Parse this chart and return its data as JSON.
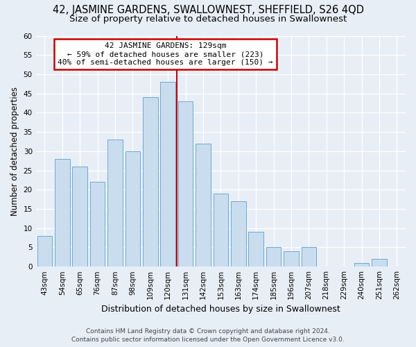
{
  "title": "42, JASMINE GARDENS, SWALLOWNEST, SHEFFIELD, S26 4QD",
  "subtitle": "Size of property relative to detached houses in Swallownest",
  "xlabel": "Distribution of detached houses by size in Swallownest",
  "ylabel": "Number of detached properties",
  "footer_line1": "Contains HM Land Registry data © Crown copyright and database right 2024.",
  "footer_line2": "Contains public sector information licensed under the Open Government Licence v3.0.",
  "categories": [
    "43sqm",
    "54sqm",
    "65sqm",
    "76sqm",
    "87sqm",
    "98sqm",
    "109sqm",
    "120sqm",
    "131sqm",
    "142sqm",
    "153sqm",
    "163sqm",
    "174sqm",
    "185sqm",
    "196sqm",
    "207sqm",
    "218sqm",
    "229sqm",
    "240sqm",
    "251sqm",
    "262sqm"
  ],
  "values": [
    8,
    28,
    26,
    22,
    33,
    30,
    44,
    48,
    43,
    32,
    19,
    17,
    9,
    5,
    4,
    5,
    0,
    0,
    1,
    2,
    0
  ],
  "bar_color": "#c9ddef",
  "bar_edge_color": "#6aaad4",
  "annotation_text_line1": "42 JASMINE GARDENS: 129sqm",
  "annotation_text_line2": "← 59% of detached houses are smaller (223)",
  "annotation_text_line3": "40% of semi-detached houses are larger (150) →",
  "annotation_box_facecolor": "#ffffff",
  "annotation_box_edgecolor": "#cc0000",
  "vline_color": "#cc0000",
  "vline_x_index": 8,
  "ylim": [
    0,
    60
  ],
  "yticks": [
    0,
    5,
    10,
    15,
    20,
    25,
    30,
    35,
    40,
    45,
    50,
    55,
    60
  ],
  "bg_color": "#e8eef6",
  "plot_bg_color": "#e8eef6",
  "grid_color": "#ffffff",
  "title_fontsize": 10.5,
  "subtitle_fontsize": 9.5,
  "ylabel_fontsize": 8.5,
  "xlabel_fontsize": 9,
  "tick_fontsize": 7.5,
  "footer_fontsize": 6.5,
  "annotation_fontsize": 8
}
